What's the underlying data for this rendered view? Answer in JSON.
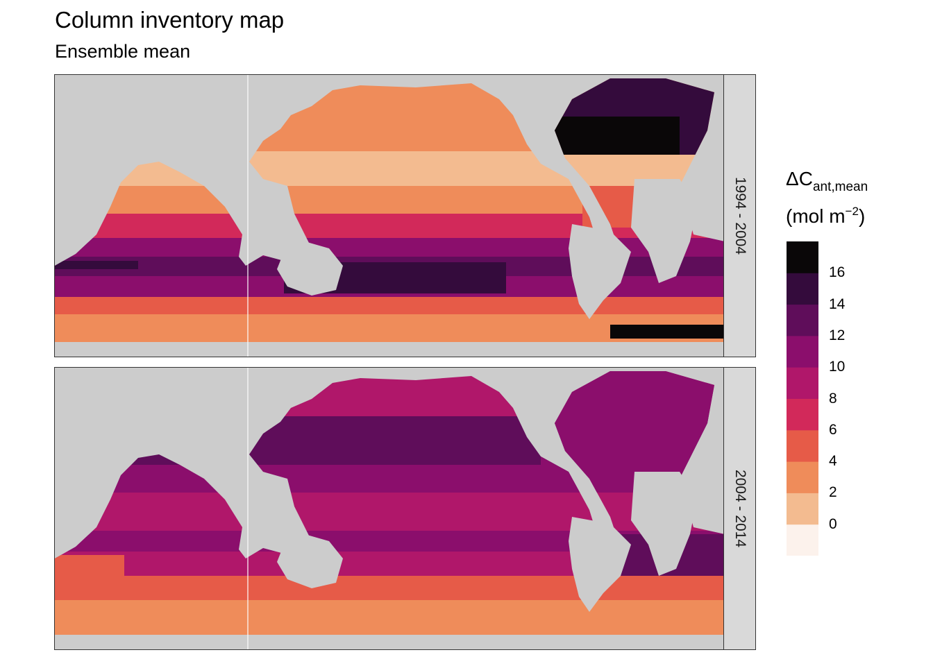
{
  "chart_data": {
    "type": "heatmap",
    "title": "Column inventory map",
    "subtitle": "Ensemble mean",
    "facets": [
      {
        "label": "1994 - 2004"
      },
      {
        "label": "2004 - 2014"
      }
    ],
    "legend": {
      "title_main": "ΔC",
      "title_sub": "ant,mean",
      "unit_prefix": "(mol m",
      "unit_sup": "−2",
      "unit_suffix": ")",
      "placement": "right",
      "breaks": [
        0,
        2,
        4,
        6,
        8,
        10,
        12,
        14,
        16
      ],
      "bins": [
        {
          "range": [
            -2,
            0
          ],
          "color": "#fcf2ec"
        },
        {
          "range": [
            0,
            2
          ],
          "color": "#f3bb90"
        },
        {
          "range": [
            2,
            4
          ],
          "color": "#ef8c5a"
        },
        {
          "range": [
            4,
            6
          ],
          "color": "#e65b48"
        },
        {
          "range": [
            6,
            8
          ],
          "color": "#d2295a"
        },
        {
          "range": [
            8,
            10
          ],
          "color": "#b0176a"
        },
        {
          "range": [
            10,
            12
          ],
          "color": "#8b0e6c"
        },
        {
          "range": [
            12,
            14
          ],
          "color": "#5f0d5a"
        },
        {
          "range": [
            14,
            16
          ],
          "color": "#340b3c"
        },
        {
          "range": [
            16,
            18
          ],
          "color": "#0a0708"
        }
      ]
    },
    "land_color": "#cccccc"
  }
}
